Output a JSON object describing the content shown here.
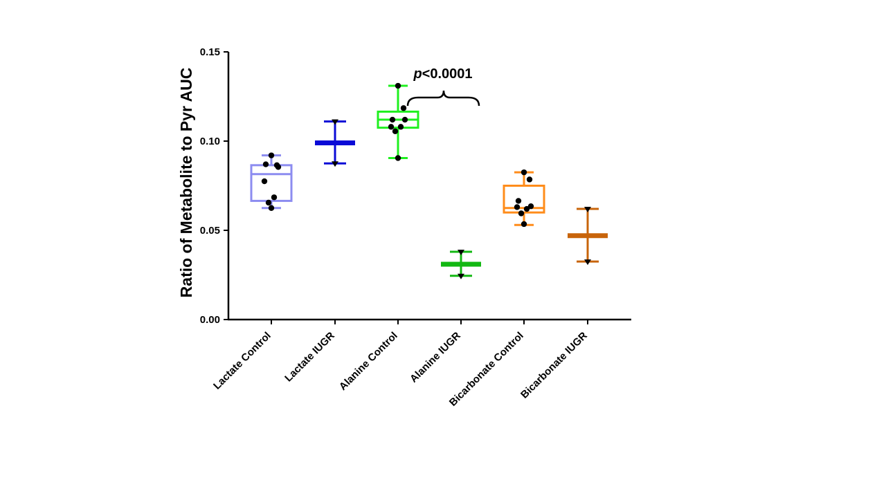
{
  "chart_data": {
    "type": "box",
    "title": "",
    "xlabel": "",
    "ylabel": "Ratio of Metabolite to Pyr AUC",
    "ylim": [
      0,
      0.15
    ],
    "yticks": [
      0.0,
      0.05,
      0.1,
      0.15
    ],
    "ytick_labels": [
      "0.00",
      "0.05",
      "0.10",
      "0.15"
    ],
    "categories": [
      "Lactate Control",
      "Lactate IUGR",
      "Alanine Control",
      "Alanine IUGR",
      "Bicarbonate  Control",
      "Bicarbonate  IUGR"
    ],
    "groups": [
      {
        "name": "Lactate Control",
        "kind": "box",
        "color": "#8c8cf0",
        "min": 0.0625,
        "q1": 0.0665,
        "median": 0.0815,
        "q3": 0.0865,
        "max": 0.092,
        "points": [
          0.092,
          0.0865,
          0.087,
          0.0855,
          0.0775,
          0.0685,
          0.0655,
          0.0625
        ],
        "point_marker": "circle"
      },
      {
        "name": "Lactate IUGR",
        "kind": "mean_range",
        "color": "#0a0ad6",
        "min": 0.0875,
        "center": 0.099,
        "max": 0.111,
        "points": [
          0.111,
          0.0875
        ],
        "point_marker": "triangle"
      },
      {
        "name": "Alanine Control",
        "kind": "box",
        "color": "#1ff01f",
        "min": 0.0905,
        "q1": 0.1075,
        "median": 0.112,
        "q3": 0.1165,
        "max": 0.131,
        "points": [
          0.131,
          0.1185,
          0.112,
          0.112,
          0.108,
          0.108,
          0.1055,
          0.0905
        ],
        "point_marker": "circle"
      },
      {
        "name": "Alanine IUGR",
        "kind": "mean_range",
        "color": "#12b812",
        "min": 0.0245,
        "center": 0.031,
        "max": 0.038,
        "points": [
          0.038,
          0.0245
        ],
        "point_marker": "triangle"
      },
      {
        "name": "Bicarbonate  Control",
        "kind": "box",
        "color": "#ff8c1a",
        "min": 0.053,
        "q1": 0.06,
        "median": 0.0625,
        "q3": 0.075,
        "max": 0.0825,
        "points": [
          0.0825,
          0.0785,
          0.0665,
          0.0635,
          0.063,
          0.062,
          0.0595,
          0.0535
        ],
        "point_marker": "circle"
      },
      {
        "name": "Bicarbonate  IUGR",
        "kind": "mean_range",
        "color": "#c8640a",
        "min": 0.0325,
        "center": 0.047,
        "max": 0.062,
        "points": [
          0.062,
          0.0325
        ],
        "point_marker": "triangle"
      }
    ],
    "annotations": [
      {
        "text_prefix": "p",
        "text": "<0.0001",
        "between": [
          "Alanine Control",
          "Alanine IUGR"
        ],
        "marker": "curly-brace"
      }
    ]
  }
}
